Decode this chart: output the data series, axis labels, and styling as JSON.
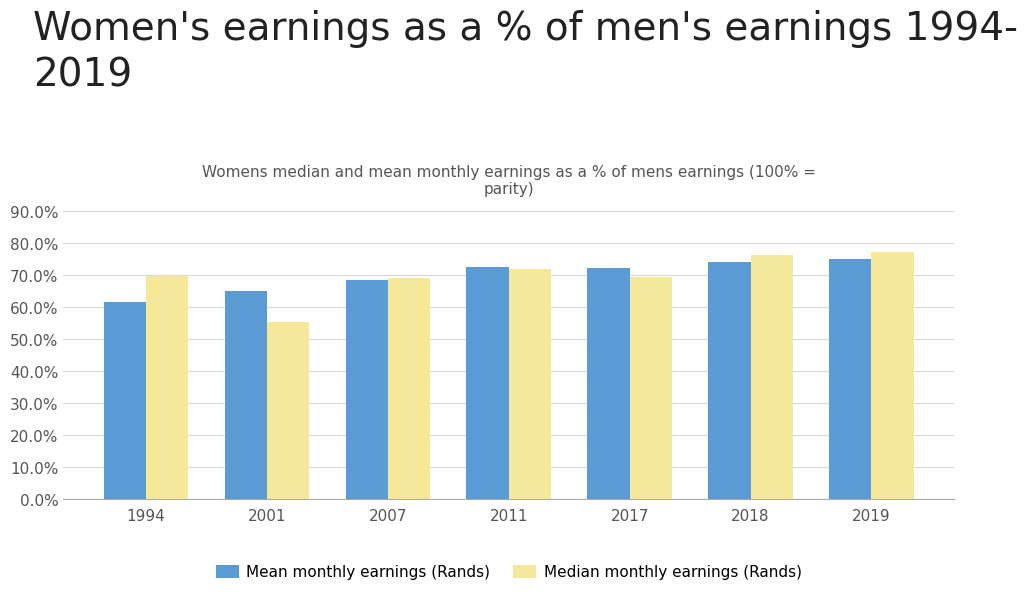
{
  "title": "Women's earnings as a % of men's earnings 1994-\n2019",
  "subtitle": "Womens median and mean monthly earnings as a % of mens earnings (100% =\nparity)",
  "categories": [
    "1994",
    "2001",
    "2007",
    "2011",
    "2017",
    "2018",
    "2019"
  ],
  "mean_values": [
    0.615,
    0.651,
    0.685,
    0.727,
    0.723,
    0.742,
    0.752
  ],
  "median_values": [
    0.698,
    0.555,
    0.692,
    0.718,
    0.696,
    0.762,
    0.772
  ],
  "mean_color": "#5B9BD5",
  "median_color": "#F5E89A",
  "background_color": "#FFFFFF",
  "ylim": [
    0,
    0.9
  ],
  "yticks": [
    0.0,
    0.1,
    0.2,
    0.3,
    0.4,
    0.5,
    0.6,
    0.7,
    0.8,
    0.9
  ],
  "legend_mean": "Mean monthly earnings (Rands)",
  "legend_median": "Median monthly earnings (Rands)",
  "title_fontsize": 28,
  "subtitle_fontsize": 11,
  "tick_fontsize": 11,
  "legend_fontsize": 11,
  "bar_width": 0.35,
  "grid_color": "#D9D9D9",
  "title_color": "#222222",
  "subtitle_color": "#555555",
  "tick_color": "#555555"
}
